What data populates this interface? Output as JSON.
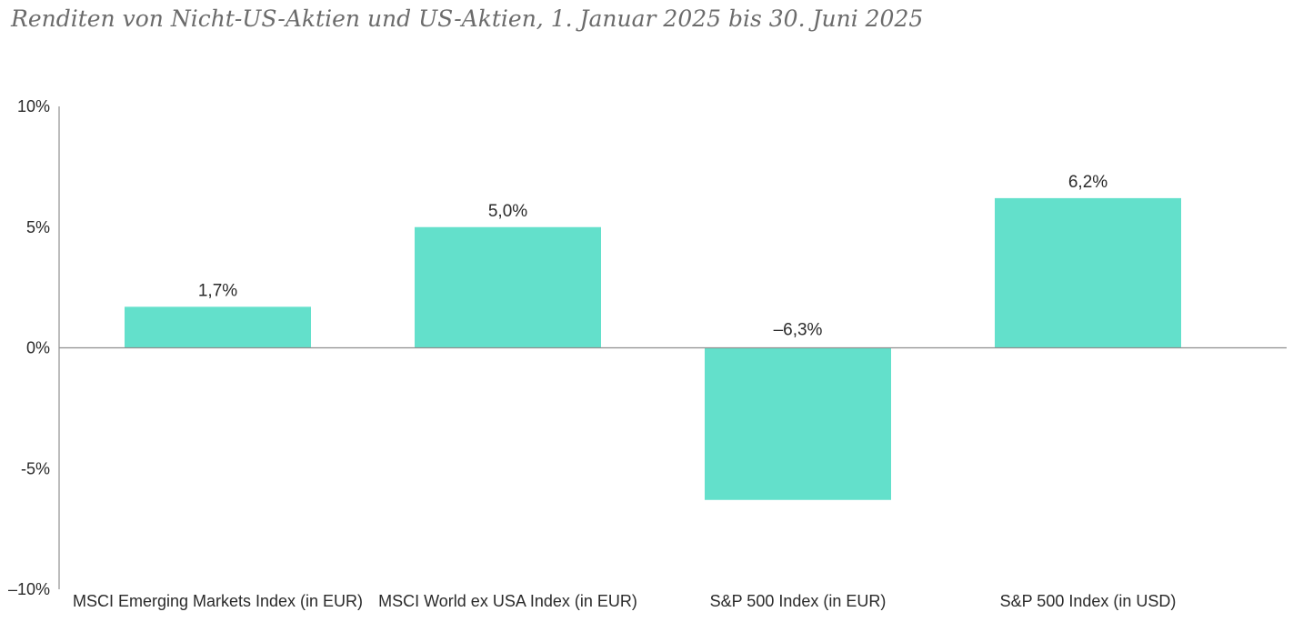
{
  "title": "Renditen von Nicht-US-Aktien und US-Aktien, 1. Januar 2025 bis 30. Juni 2025",
  "colors": {
    "bar": "#63e0cb",
    "axis": "#8f8f8f",
    "text": "#2a2a2a",
    "title": "#6b6b6b"
  },
  "chart_data": {
    "type": "bar",
    "title": "Renditen von Nicht-US-Aktien und US-Aktien, 1. Januar 2025 bis 30. Juni 2025",
    "xlabel": "",
    "ylabel": "",
    "categories": [
      "MSCI Emerging Markets Index (in EUR)",
      "MSCI World ex USA Index (in EUR)",
      "S&P 500 Index (in EUR)",
      "S&P 500 Index (in USD)"
    ],
    "values": [
      1.7,
      5.0,
      -6.3,
      6.2
    ],
    "data_labels": [
      "1,7%",
      "5,0%",
      "–6,3%",
      "6,2%"
    ],
    "ylim": [
      -10,
      10
    ],
    "yticks": [
      10,
      5,
      0,
      -5,
      -10
    ],
    "ytick_labels": [
      "10%",
      "5%",
      "0%",
      "-5%",
      "–10%"
    ],
    "grid": false,
    "legend": "none"
  }
}
